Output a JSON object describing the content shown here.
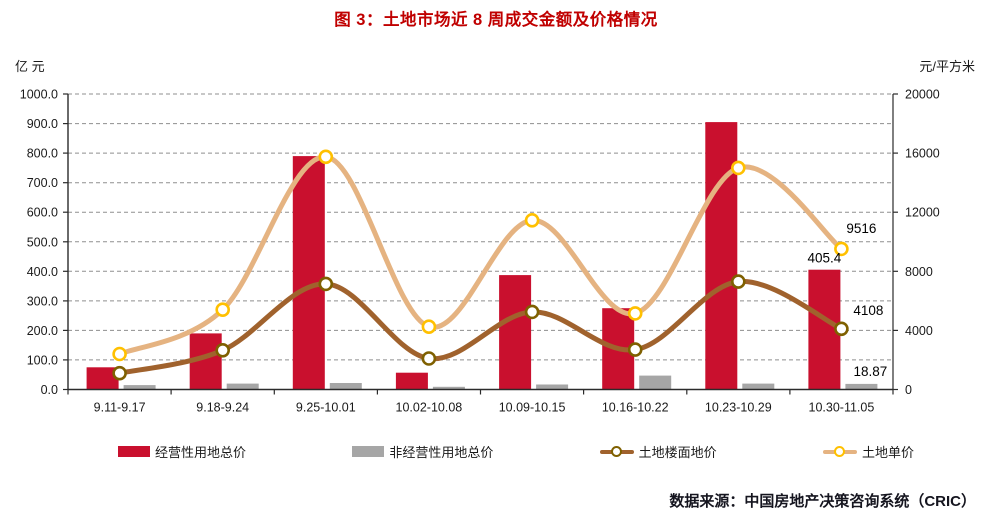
{
  "page": {
    "title": "图 3：土地市场近 8 周成交金额及价格情况",
    "source_note": "数据来源：中国房地产决策咨询系统（CRIC）"
  },
  "chart_data": {
    "type": "combo-bar-line",
    "title": "图 3：土地市场近 8 周成交金额及价格情况",
    "categories": [
      "9.11-9.17",
      "9.18-9.24",
      "9.25-10.01",
      "10.02-10.08",
      "10.09-10.15",
      "10.16-10.22",
      "10.23-10.29",
      "10.30-11.05"
    ],
    "y_axis_left": {
      "unit_label": "亿 元",
      "min": 0,
      "max": 1000,
      "step": 100,
      "tick_labels": [
        "0.0",
        "100.0",
        "200.0",
        "300.0",
        "400.0",
        "500.0",
        "600.0",
        "700.0",
        "800.0",
        "900.0",
        "1000.0"
      ]
    },
    "y_axis_right": {
      "unit_label": "元/平方米",
      "min": 0,
      "max": 20000,
      "step": 4000,
      "tick_labels": [
        "0",
        "4000",
        "8000",
        "12000",
        "16000",
        "20000"
      ]
    },
    "grid": "dashed-horizontal",
    "legend_position": "bottom",
    "series": [
      {
        "name": "经营性用地总价",
        "type": "bar",
        "axis": "left",
        "color": "#C9102E",
        "values": [
          75,
          190,
          790,
          57,
          387,
          275,
          905,
          405.4
        ]
      },
      {
        "name": "非经营性用地总价",
        "type": "bar",
        "axis": "left",
        "color": "#A6A6A6",
        "values": [
          15,
          20,
          22,
          9,
          17,
          47,
          20,
          18.87
        ]
      },
      {
        "name": "土地楼面地价",
        "type": "line",
        "axis": "right",
        "color": "#A0622D",
        "marker_ring": "#7F6000",
        "values": [
          1100,
          2650,
          7150,
          2100,
          5250,
          2700,
          7300,
          4108
        ]
      },
      {
        "name": "土地单价",
        "type": "line",
        "axis": "right",
        "color": "#E5B381",
        "marker_ring": "#FFC000",
        "values": [
          2400,
          5400,
          15750,
          4250,
          11450,
          5150,
          15000,
          9516
        ]
      }
    ],
    "annotations": [
      {
        "text": "405.4",
        "series": 0,
        "week": 7
      },
      {
        "text": "18.87",
        "series": 1,
        "week": 7
      },
      {
        "text": "4108",
        "series": 2,
        "week": 7
      },
      {
        "text": "9516",
        "series": 3,
        "week": 7
      }
    ]
  }
}
